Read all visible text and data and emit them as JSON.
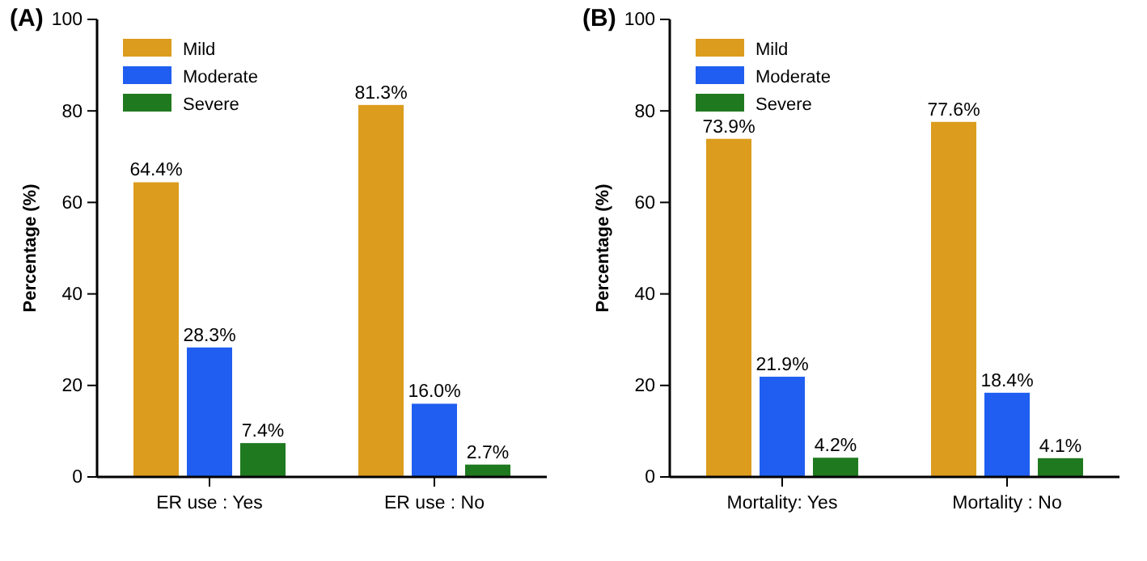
{
  "chart_data": [
    {
      "type": "bar",
      "title": "(A)",
      "ylabel": "Percentage (%)",
      "categories": [
        "ER use : Yes",
        "ER use : No"
      ],
      "ylim": [
        0,
        100
      ],
      "yticks": [
        0,
        20,
        40,
        60,
        80,
        100
      ],
      "legend": "top left",
      "grid": false,
      "series": [
        {
          "name": "Mild",
          "color": "#dc9c1e",
          "values": [
            64.4,
            81.3
          ],
          "value_labels": [
            "64.4%",
            "81.3%"
          ]
        },
        {
          "name": "Moderate",
          "color": "#1f5ef0",
          "values": [
            28.3,
            16.0
          ],
          "value_labels": [
            "28.3%",
            "16.0%"
          ]
        },
        {
          "name": "Severe",
          "color": "#1f7a1f",
          "values": [
            7.4,
            2.7
          ],
          "value_labels": [
            "7.4%",
            "2.7%"
          ]
        }
      ]
    },
    {
      "type": "bar",
      "title": "(B)",
      "ylabel": "Percentage (%)",
      "categories": [
        "Mortality: Yes",
        "Mortality : No"
      ],
      "ylim": [
        0,
        100
      ],
      "yticks": [
        0,
        20,
        40,
        60,
        80,
        100
      ],
      "legend": "top left",
      "grid": false,
      "series": [
        {
          "name": "Mild",
          "color": "#dc9c1e",
          "values": [
            73.9,
            77.6
          ],
          "value_labels": [
            "73.9%",
            "77.6%"
          ]
        },
        {
          "name": "Moderate",
          "color": "#1f5ef0",
          "values": [
            21.9,
            18.4
          ],
          "value_labels": [
            "21.9%",
            "18.4%"
          ]
        },
        {
          "name": "Severe",
          "color": "#1f7a1f",
          "values": [
            4.2,
            4.1
          ],
          "value_labels": [
            "4.2%",
            "4.1%"
          ]
        }
      ]
    }
  ]
}
